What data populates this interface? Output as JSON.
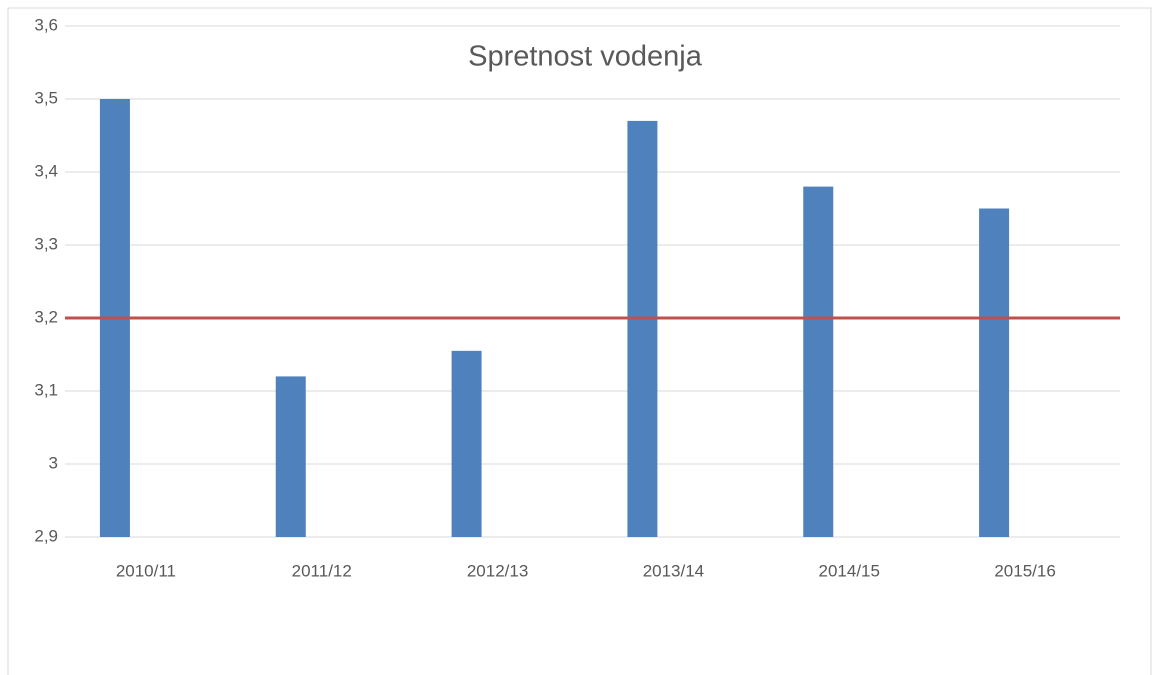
{
  "chart_data": {
    "type": "bar",
    "title": "Spretnost vodenja",
    "categories": [
      "2010/11",
      "2011/12",
      "2012/13",
      "2013/14",
      "2014/15",
      "2015/16"
    ],
    "values": [
      3.5,
      3.12,
      3.155,
      3.47,
      3.38,
      3.35
    ],
    "color": "#4f81bd",
    "ylim": [
      2.9,
      3.6
    ],
    "yticks": [
      {
        "value": 2.9,
        "label": "2,9"
      },
      3,
      {
        "value": 3.1,
        "label": "3,1"
      },
      {
        "value": 3.2,
        "label": "3,2"
      },
      {
        "value": 3.3,
        "label": "3,3"
      },
      {
        "value": 3.4,
        "label": "3,4"
      },
      {
        "value": 3.5,
        "label": "3,5"
      },
      {
        "value": 3.6,
        "label": "3,6"
      }
    ],
    "grid": true,
    "reference_line": {
      "value": 3.2,
      "color": "#c0504d"
    }
  }
}
